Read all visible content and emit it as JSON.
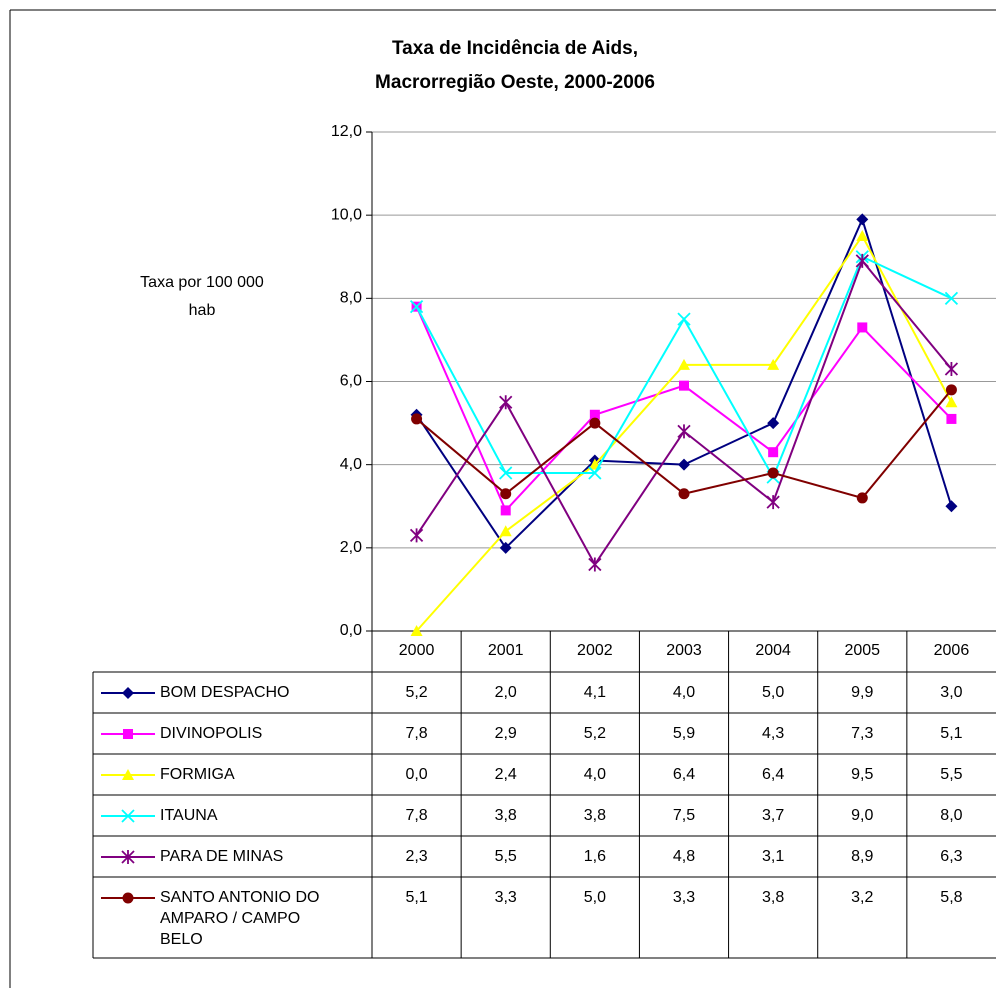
{
  "chart_data": {
    "type": "line",
    "title": [
      "Taxa de Incidência de Aids,",
      "Macrorregião Oeste, 2000-2006"
    ],
    "ylabel": [
      "Taxa por 100 000",
      "hab"
    ],
    "categories": [
      "2000",
      "2001",
      "2002",
      "2003",
      "2004",
      "2005",
      "2006"
    ],
    "ylim": [
      0,
      12
    ],
    "yticks": [
      {
        "value": 0,
        "label": "0,0"
      },
      {
        "value": 2,
        "label": "2,0"
      },
      {
        "value": 4,
        "label": "4,0"
      },
      {
        "value": 6,
        "label": "6,0"
      },
      {
        "value": 8,
        "label": "8,0"
      },
      {
        "value": 10,
        "label": "10,0"
      },
      {
        "value": 12,
        "label": "12,0"
      }
    ],
    "grid": true,
    "series": [
      {
        "name": "BOM DESPACHO",
        "color": "#000080",
        "marker": "diamond",
        "values": [
          5.2,
          2.0,
          4.1,
          4.0,
          5.0,
          9.9,
          3.0
        ],
        "value_labels": [
          "5,2",
          "2,0",
          "4,1",
          "4,0",
          "5,0",
          "9,9",
          "3,0"
        ]
      },
      {
        "name": "DIVINOPOLIS",
        "color": "#ff00ff",
        "marker": "square",
        "values": [
          7.8,
          2.9,
          5.2,
          5.9,
          4.3,
          7.3,
          5.1
        ],
        "value_labels": [
          "7,8",
          "2,9",
          "5,2",
          "5,9",
          "4,3",
          "7,3",
          "5,1"
        ]
      },
      {
        "name": "FORMIGA",
        "color": "#ffff00",
        "marker": "triangle",
        "values": [
          0.0,
          2.4,
          4.0,
          6.4,
          6.4,
          9.5,
          5.5
        ],
        "value_labels": [
          "0,0",
          "2,4",
          "4,0",
          "6,4",
          "6,4",
          "9,5",
          "5,5"
        ]
      },
      {
        "name": "ITAUNA",
        "color": "#00ffff",
        "marker": "x",
        "values": [
          7.8,
          3.8,
          3.8,
          7.5,
          3.7,
          9.0,
          8.0
        ],
        "value_labels": [
          "7,8",
          "3,8",
          "3,8",
          "7,5",
          "3,7",
          "9,0",
          "8,0"
        ]
      },
      {
        "name": "PARA DE MINAS",
        "color": "#800080",
        "marker": "star",
        "values": [
          2.3,
          5.5,
          1.6,
          4.8,
          3.1,
          8.9,
          6.3
        ],
        "value_labels": [
          "2,3",
          "5,5",
          "1,6",
          "4,8",
          "3,1",
          "8,9",
          "6,3"
        ]
      },
      {
        "name": "SANTO ANTONIO DO AMPARO / CAMPO BELO",
        "color": "#800000",
        "marker": "circle",
        "values": [
          5.1,
          3.3,
          5.0,
          3.3,
          3.8,
          3.2,
          5.8
        ],
        "value_labels": [
          "5,1",
          "3,3",
          "5,0",
          "3,3",
          "3,8",
          "3,2",
          "5,8"
        ]
      }
    ]
  }
}
